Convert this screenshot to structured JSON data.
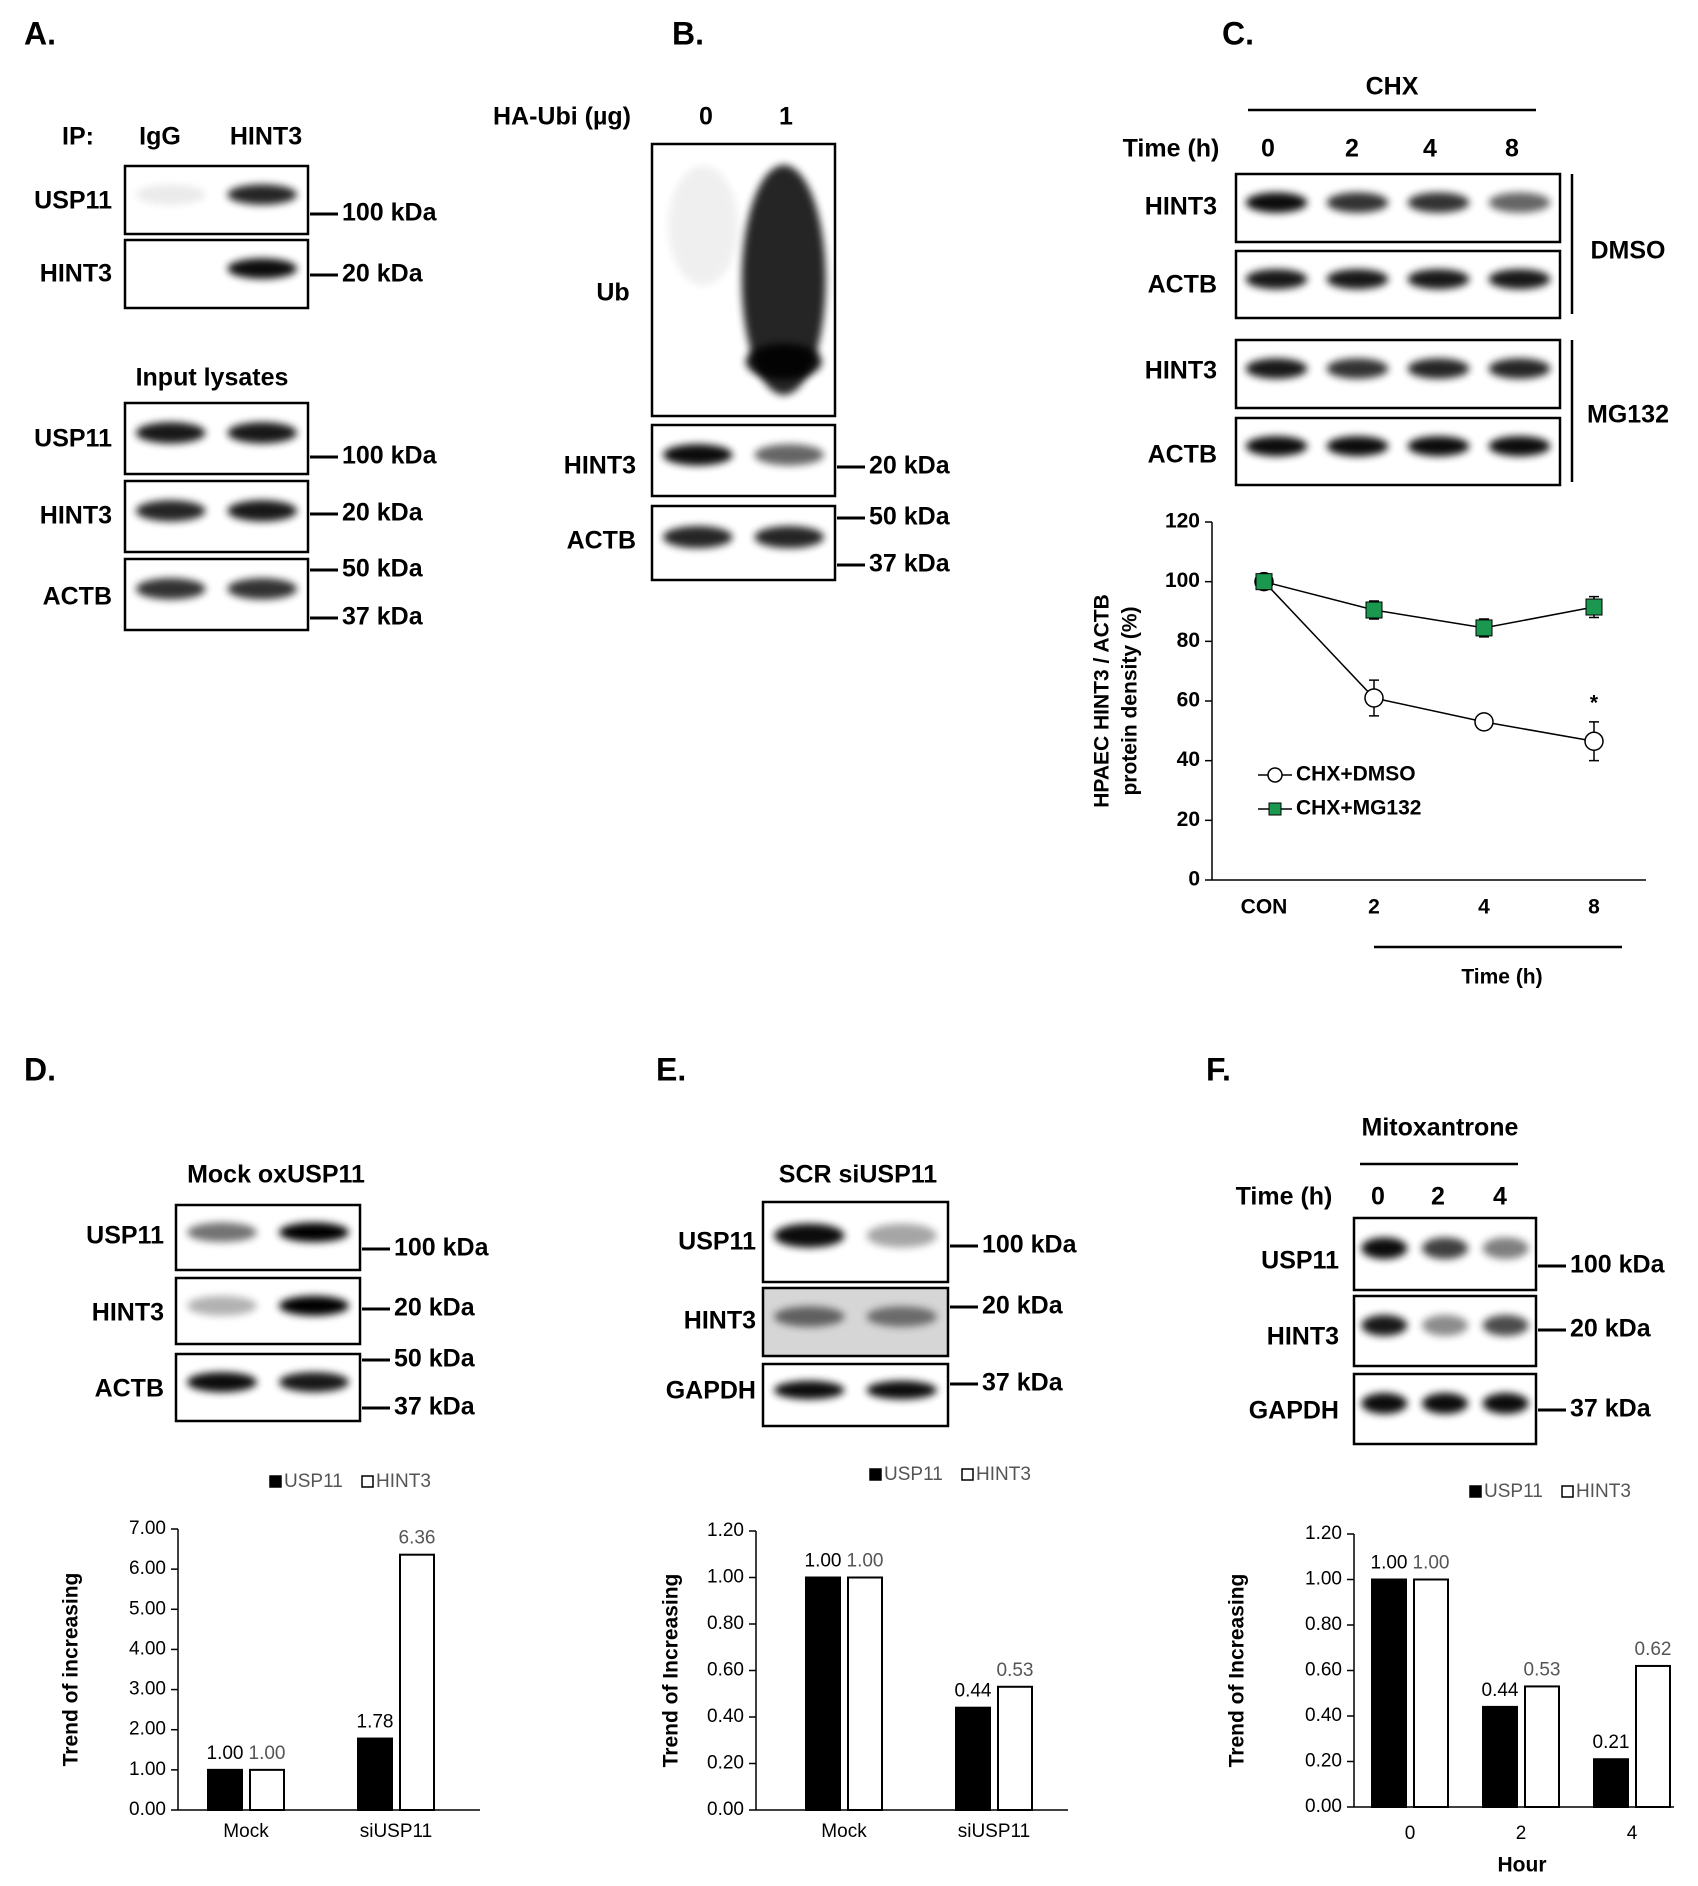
{
  "blots": {
    "A": {
      "label": "A.",
      "header": [
        "IP:",
        "IgG",
        "HINT3"
      ],
      "rows": [
        "USP11",
        "HINT3"
      ],
      "markers": [
        "100 kDa",
        "20 kDa"
      ],
      "input_title": "Input lysates",
      "input_rows": [
        "USP11",
        "HINT3",
        "ACTB"
      ],
      "input_markers": [
        "100 kDa",
        "20 kDa",
        "50 kDa",
        "37 kDa"
      ]
    },
    "B": {
      "label": "B.",
      "header": [
        "HA-Ubi (µg)",
        "0",
        "1"
      ],
      "rows": [
        "Ub",
        "HINT3",
        "ACTB"
      ],
      "markers": [
        "20 kDa",
        "50 kDa",
        "37 kDa"
      ]
    },
    "C": {
      "label": "C.",
      "treatment": "CHX",
      "header": [
        "Time (h)",
        "0",
        "2",
        "4",
        "8"
      ],
      "rows": [
        "HINT3",
        "ACTB",
        "HINT3",
        "ACTB"
      ],
      "groups": [
        "DMSO",
        "MG132"
      ]
    },
    "D": {
      "label": "D.",
      "header": "Mock oxUSP11",
      "rows": [
        "USP11",
        "HINT3",
        "ACTB"
      ],
      "markers": [
        "100 kDa",
        "20 kDa",
        "50 kDa",
        "37 kDa"
      ]
    },
    "E": {
      "label": "E.",
      "header": "SCR siUSP11",
      "rows": [
        "USP11",
        "HINT3",
        "GAPDH"
      ],
      "markers": [
        "100 kDa",
        "20 kDa",
        "37 kDa"
      ]
    },
    "F": {
      "label": "F.",
      "treatment": "Mitoxantrone",
      "header": [
        "Time (h)",
        "0",
        "2",
        "4"
      ],
      "rows": [
        "USP11",
        "HINT3",
        "GAPDH"
      ],
      "markers": [
        "100 kDa",
        "20 kDa",
        "37 kDa"
      ]
    }
  },
  "chart_data": [
    {
      "type": "line",
      "y_label": [
        "HPAEC  HINT3 / ACTB",
        "protein density (%)"
      ],
      "x_label": "Time (h)",
      "categories": [
        "CON",
        "2",
        "4",
        "8"
      ],
      "series": [
        {
          "name": "CHX+DMSO",
          "color": "#ffffff",
          "marker": "circle",
          "values": [
            100,
            61,
            53,
            46.5
          ],
          "errors": [
            2,
            6,
            1,
            6.5
          ]
        },
        {
          "name": "CHX+MG132",
          "color": "#1a9850",
          "marker": "square",
          "values": [
            100,
            90.5,
            84.5,
            91.5
          ],
          "errors": [
            2,
            3,
            3,
            3.5
          ]
        }
      ],
      "ylim": [
        0,
        120
      ],
      "yticks": [
        0,
        20,
        40,
        60,
        80,
        100,
        120
      ],
      "annotation": "*"
    },
    {
      "type": "bar",
      "y_label": "Trend of increasing",
      "categories": [
        "Mock",
        "siUSP11"
      ],
      "series": [
        {
          "name": "USP11",
          "color": "#000000",
          "values": [
            1,
            1.78
          ],
          "value_labels": [
            "1.00",
            "1.78"
          ]
        },
        {
          "name": "HINT3",
          "color": "#ffffff",
          "values": [
            1,
            6.36
          ],
          "value_labels": [
            "1.00",
            "6.36"
          ]
        }
      ],
      "ylim": [
        0,
        7
      ],
      "yticks": [
        {
          "value": 0,
          "label": "0.00"
        },
        {
          "value": 1,
          "label": "1.00"
        },
        {
          "value": 2,
          "label": "2.00"
        },
        {
          "value": 3,
          "label": "3.00"
        },
        {
          "value": 4,
          "label": "4.00"
        },
        {
          "value": 5,
          "label": "5.00"
        },
        {
          "value": 6,
          "label": "6.00"
        },
        {
          "value": 7,
          "label": "7.00"
        }
      ]
    },
    {
      "type": "bar",
      "y_label": "Trend of Increasing",
      "categories": [
        "Mock",
        "siUSP11"
      ],
      "series": [
        {
          "name": "USP11",
          "color": "#000000",
          "values": [
            1,
            0.44
          ],
          "value_labels": [
            "1.00",
            "0.44"
          ]
        },
        {
          "name": "HINT3",
          "color": "#ffffff",
          "values": [
            1,
            0.53
          ],
          "value_labels": [
            "1.00",
            "0.53"
          ]
        }
      ],
      "ylim": [
        0,
        1.2
      ],
      "yticks": [
        {
          "value": 0,
          "label": "0.00"
        },
        {
          "value": 0.2,
          "label": "0.20"
        },
        {
          "value": 0.4,
          "label": "0.40"
        },
        {
          "value": 0.6,
          "label": "0.60"
        },
        {
          "value": 0.8,
          "label": "0.80"
        },
        {
          "value": 1,
          "label": "1.00"
        },
        {
          "value": 1.2,
          "label": "1.20"
        }
      ]
    },
    {
      "type": "bar",
      "y_label": "Trend of Increasing",
      "x_label": "Hour",
      "categories": [
        "0",
        "2",
        "4"
      ],
      "series": [
        {
          "name": "USP11",
          "color": "#000000",
          "values": [
            1,
            0.44,
            0.21
          ],
          "value_labels": [
            "1.00",
            "0.44",
            "0.21"
          ]
        },
        {
          "name": "HINT3",
          "color": "#ffffff",
          "values": [
            1,
            0.53,
            0.62
          ],
          "value_labels": [
            "1.00",
            "0.53",
            "0.62"
          ]
        }
      ],
      "ylim": [
        0,
        1.2
      ],
      "yticks": [
        {
          "value": 0,
          "label": "0.00"
        },
        {
          "value": 0.2,
          "label": "0.20"
        },
        {
          "value": 0.4,
          "label": "0.40"
        },
        {
          "value": 0.6,
          "label": "0.60"
        },
        {
          "value": 0.8,
          "label": "0.80"
        },
        {
          "value": 1,
          "label": "1.00"
        },
        {
          "value": 1.2,
          "label": "1.20"
        }
      ]
    }
  ]
}
